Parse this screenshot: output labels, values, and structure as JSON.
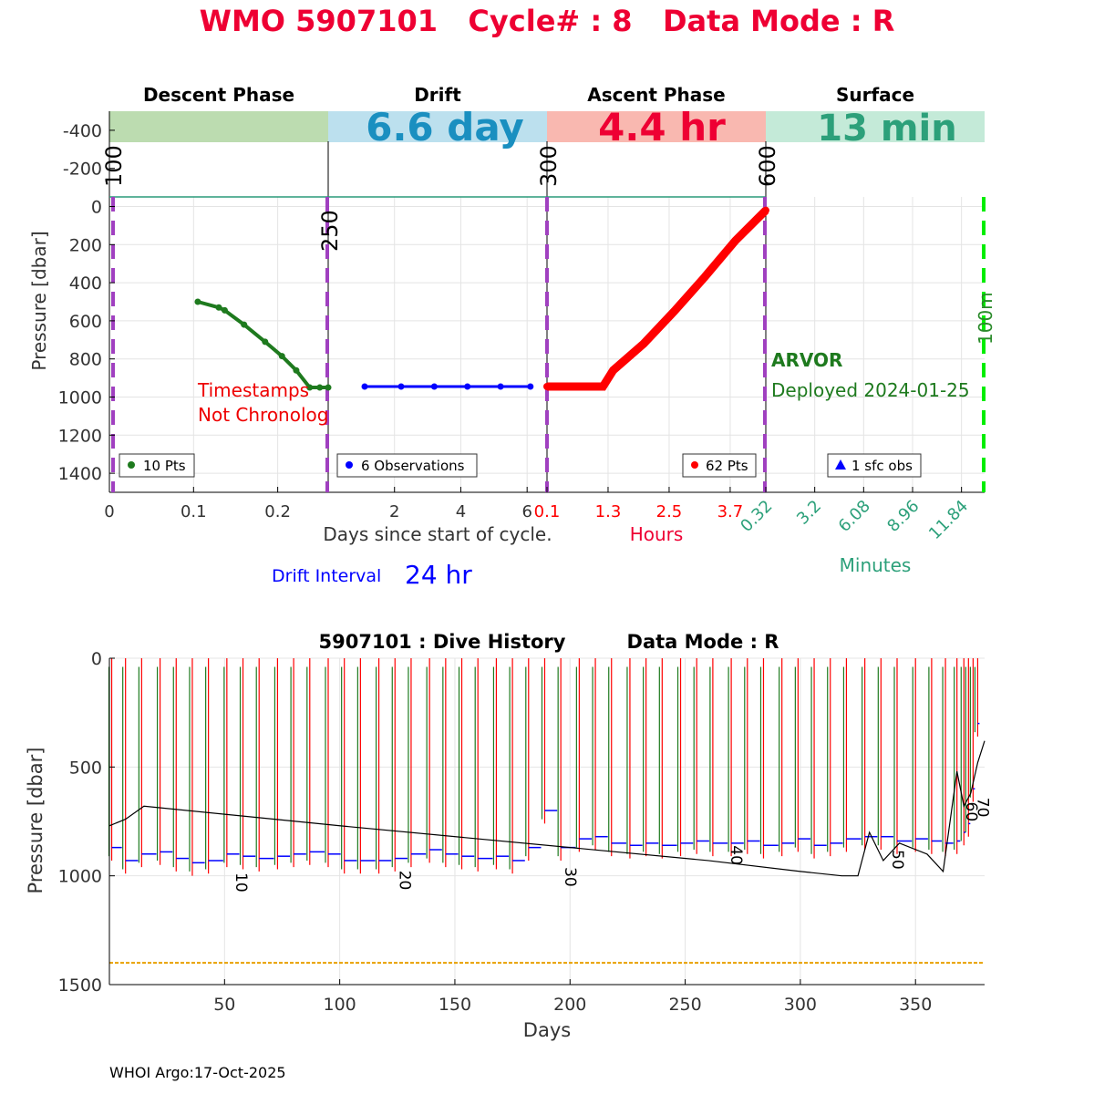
{
  "title": {
    "wmo": "WMO 5907101",
    "cycle": "Cycle# : 8",
    "mode": "Data Mode : R"
  },
  "colors": {
    "title": "#ee0033",
    "descent": "#1e7a1e",
    "drift": "#0000ff",
    "ascent": "#ff0000",
    "surface": "#2ca07a",
    "boundary": "#a040c0",
    "surface_line": "#00ee00",
    "ref_line": "#e8a000",
    "ascent_bar": "#f9b8b0",
    "descent_bar": "#bcdcb0",
    "drift_bar": "#bce0ee",
    "surface_bar": "#c4ead8"
  },
  "chart_data": [
    {
      "type": "line",
      "id": "descent",
      "phase_label": "Descent Phase",
      "ylabel": "Pressure [dbar]",
      "xlabel": "Days since start of cycle.",
      "ylim": [
        -500,
        1500
      ],
      "yticks": [
        -400,
        -200,
        0,
        200,
        400,
        600,
        800,
        1000,
        1200,
        1400
      ],
      "xlim": [
        0,
        0.26
      ],
      "xticks": [
        0,
        0.1,
        0.2
      ],
      "xtick_labels": [
        "0",
        "0.1",
        "0.2"
      ],
      "x": [
        0.105,
        0.13,
        0.137,
        0.16,
        0.185,
        0.205,
        0.222,
        0.238,
        0.25,
        0.26
      ],
      "y": [
        500,
        530,
        545,
        620,
        710,
        785,
        860,
        950,
        950,
        950
      ],
      "legend": "10 Pts",
      "annotation": [
        "Timestamps",
        "Not Chronolog"
      ],
      "boundary_labels": [
        "100",
        "250"
      ]
    },
    {
      "type": "line",
      "id": "drift",
      "phase_label": "Drift",
      "duration": "6.6 day",
      "xlim": [
        0,
        6.6
      ],
      "xticks": [
        2,
        4,
        6
      ],
      "xtick_labels": [
        "2",
        "4",
        "6"
      ],
      "x": [
        1.1,
        2.2,
        3.2,
        4.2,
        5.2,
        6.1
      ],
      "y": [
        945,
        945,
        945,
        945,
        945,
        945
      ],
      "legend": "6 Observations",
      "drift_interval_label": "Drift Interval",
      "drift_interval_value": "24 hr",
      "boundary_labels": [
        "300"
      ]
    },
    {
      "type": "line",
      "id": "ascent",
      "phase_label": "Ascent Phase",
      "duration": "4.4 hr",
      "xlabel": "Hours",
      "xlim": [
        0.1,
        4.4
      ],
      "xticks": [
        0.1,
        1.3,
        2.5,
        3.7
      ],
      "xtick_labels": [
        "0.1",
        "1.3",
        "2.5",
        "3.7"
      ],
      "x": [
        0.1,
        1.2,
        1.4,
        2.0,
        2.6,
        3.2,
        3.8,
        4.4
      ],
      "y": [
        945,
        945,
        860,
        720,
        550,
        370,
        180,
        20
      ],
      "legend": "62 Pts",
      "boundary_labels": [
        "600"
      ]
    },
    {
      "type": "scatter",
      "id": "surface",
      "phase_label": "Surface",
      "duration": "13 min",
      "xlabel": "Minutes",
      "xlim": [
        0.32,
        13.2
      ],
      "xtick_labels": [
        "0.32",
        "3.2",
        "6.08",
        "8.96",
        "11.84"
      ],
      "xticks": [
        0.32,
        3.2,
        6.08,
        8.96,
        11.84
      ],
      "legend": "1 sfc obs",
      "float_type": "ARVOR",
      "deployed": "Deployed 2024-01-25",
      "surface_marker_label": "100m"
    },
    {
      "type": "line",
      "id": "history",
      "title_left": "5907101 : Dive History",
      "title_right": "Data Mode : R",
      "ylabel": "Pressure [dbar]",
      "xlabel": "Days",
      "xlim": [
        0,
        380
      ],
      "ylim": [
        0,
        1500
      ],
      "xticks": [
        50,
        100,
        150,
        200,
        250,
        300,
        350
      ],
      "yticks": [
        0,
        500,
        1000,
        1500
      ],
      "reference_depth": 1400,
      "cycle_days": [
        1,
        7,
        14,
        22,
        29,
        36,
        43,
        51,
        58,
        65,
        73,
        80,
        87,
        95,
        102,
        109,
        117,
        124,
        131,
        139,
        146,
        153,
        160,
        168,
        175,
        182,
        189,
        196,
        204,
        211,
        218,
        226,
        233,
        240,
        248,
        255,
        262,
        270,
        277,
        284,
        292,
        299,
        306,
        313,
        320,
        328,
        335,
        342,
        350,
        357,
        363,
        368,
        371,
        373,
        375,
        377
      ],
      "drift_depths": [
        870,
        930,
        900,
        890,
        920,
        940,
        930,
        900,
        910,
        920,
        910,
        900,
        890,
        900,
        930,
        930,
        930,
        920,
        900,
        880,
        900,
        910,
        920,
        910,
        930,
        870,
        700,
        870,
        830,
        820,
        850,
        860,
        850,
        860,
        850,
        840,
        850,
        850,
        840,
        860,
        850,
        830,
        860,
        850,
        830,
        820,
        820,
        840,
        830,
        840,
        850,
        840,
        800,
        760,
        600,
        300
      ],
      "trajectory_x": [
        0,
        7,
        15,
        100,
        200,
        260,
        300,
        318,
        325,
        330,
        336,
        343,
        355,
        362,
        368,
        371,
        374,
        377,
        380
      ],
      "trajectory_y": [
        770,
        740,
        680,
        770,
        870,
        930,
        980,
        1000,
        1000,
        800,
        930,
        850,
        900,
        980,
        520,
        680,
        620,
        480,
        380
      ],
      "cycle_labels": [
        {
          "day": 55,
          "depth": 985,
          "text": "10"
        },
        {
          "day": 126,
          "depth": 975,
          "text": "20"
        },
        {
          "day": 198,
          "depth": 960,
          "text": "30"
        },
        {
          "day": 270,
          "depth": 860,
          "text": "40"
        },
        {
          "day": 340,
          "depth": 880,
          "text": "50"
        },
        {
          "day": 372,
          "depth": 660,
          "text": "60"
        },
        {
          "day": 377,
          "depth": 640,
          "text": "70"
        }
      ]
    }
  ],
  "footer": "WHOI Argo:17-Oct-2025"
}
